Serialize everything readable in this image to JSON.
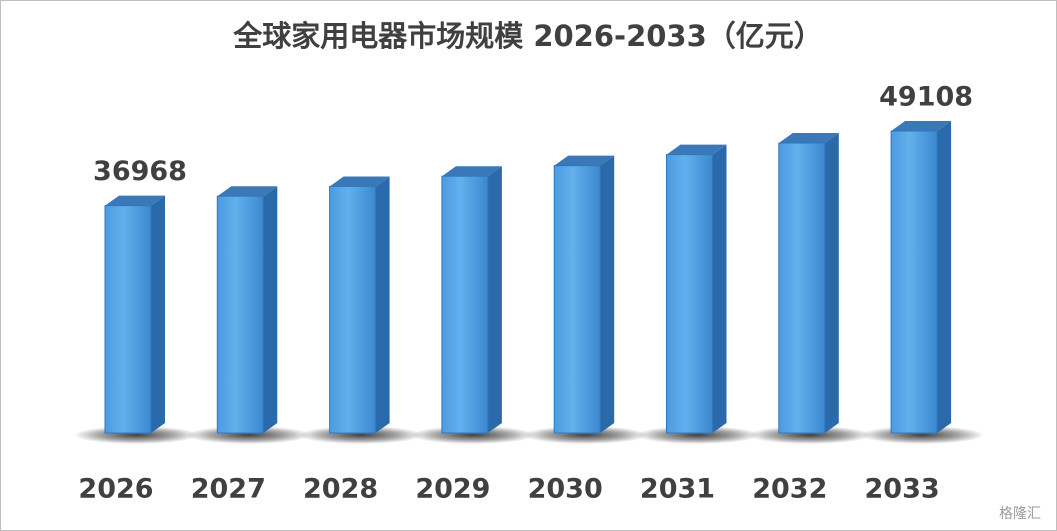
{
  "chart_data": {
    "type": "bar3d",
    "title": "全球家用电器市场规模 2026-2033（亿元）",
    "categories": [
      "2026",
      "2027",
      "2028",
      "2029",
      "2030",
      "2031",
      "2032",
      "2033"
    ],
    "values": [
      36968,
      38500,
      40090,
      41750,
      43470,
      45270,
      47150,
      49108
    ],
    "value_labels": [
      "36968",
      null,
      null,
      null,
      null,
      null,
      null,
      "49108"
    ],
    "color": "#3d8fd9",
    "watermark": "格隆汇"
  }
}
